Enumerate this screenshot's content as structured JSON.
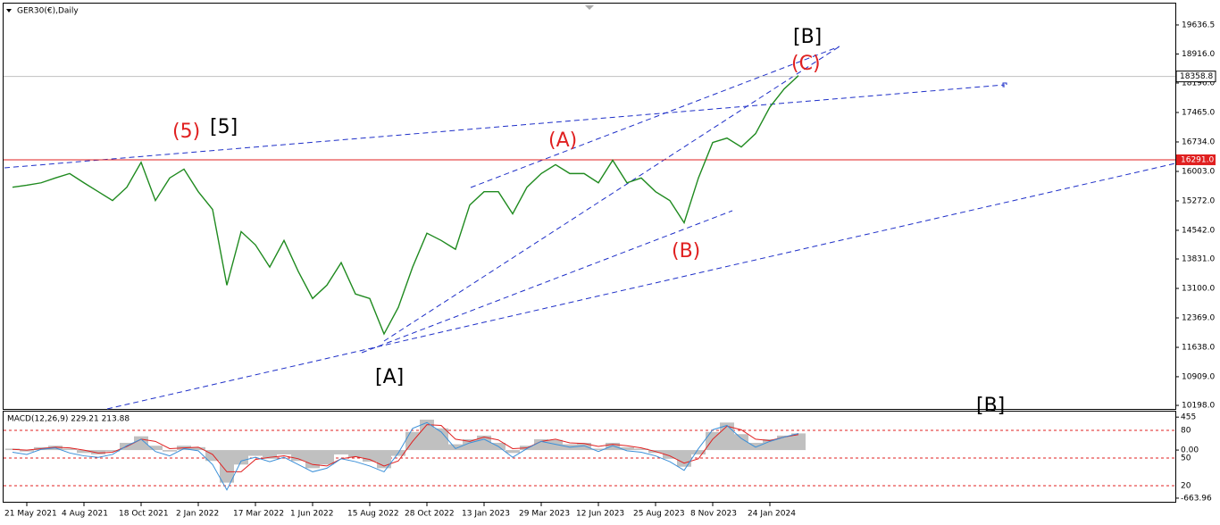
{
  "chart_data": [
    {
      "type": "line",
      "title": "GER30(€),Daily",
      "categories": [
        null,
        "21 May 2021",
        null,
        null,
        null,
        "4 Aug 2021",
        null,
        null,
        null,
        "18 Oct 2021",
        null,
        null,
        null,
        "2 Jan 2022",
        null,
        null,
        null,
        "17 Mar 2022",
        null,
        null,
        null,
        "1 Jun 2022",
        null,
        null,
        null,
        "15 Aug 2022",
        null,
        null,
        null,
        "28 Oct 2022",
        null,
        null,
        null,
        "13 Jan 2023",
        null,
        null,
        null,
        "29 Mar 2023",
        null,
        null,
        null,
        "12 Jun 2023",
        null,
        null,
        null,
        "25 Aug 2023",
        null,
        null,
        null,
        "8 Nov 2023",
        null,
        null,
        null,
        "24 Jan 2024",
        null,
        null
      ],
      "series": [
        {
          "color": "#1f8a1f",
          "values": [
            15610,
            15660,
            15720,
            15840,
            15950,
            15720,
            15500,
            15280,
            15610,
            16230,
            15280,
            15840,
            16060,
            15500,
            15060,
            13180,
            14510,
            14180,
            13630,
            14290,
            13520,
            12850,
            13180,
            13740,
            12960,
            12850,
            11970,
            12630,
            13630,
            14470,
            14290,
            14070,
            15170,
            15500,
            15500,
            14950,
            15610,
            15950,
            16170,
            15950,
            15950,
            15720,
            16280,
            15720,
            15840,
            15500,
            15280,
            14730,
            15840,
            16720,
            16830,
            16610,
            16940,
            17600,
            18050,
            18380
          ]
        }
      ],
      "ylim": [
        10110,
        20145
      ],
      "yticks": [
        19636.5,
        {
          "value": 18916,
          "label": "18916.0"
        },
        {
          "value": 18196,
          "label": "18196.0"
        },
        {
          "value": 17465,
          "label": "17465.0"
        },
        {
          "value": 16734,
          "label": "16734.0"
        },
        {
          "value": 16003,
          "label": "16003.0"
        },
        {
          "value": 15272,
          "label": "15272.0"
        },
        {
          "value": 14542,
          "label": "14542.0"
        },
        {
          "value": 13831,
          "label": "13831.0"
        },
        {
          "value": 13100,
          "label": "13100.0"
        },
        {
          "value": 12369,
          "label": "12369.0"
        },
        {
          "value": 11638,
          "label": "11638.0"
        },
        {
          "value": 10909,
          "label": "10909.0"
        },
        {
          "value": 10198,
          "label": "10198.0"
        }
      ],
      "current_price": 18358.8,
      "level": {
        "value": 16291,
        "label": "16291.0",
        "color": "#e02020"
      },
      "annotations": [
        "(5)",
        "[5]",
        "(A)",
        "(B)",
        "(C)",
        "[B]",
        "[A]",
        "[B]"
      ]
    },
    {
      "type": "macd",
      "title": "MACD(12,26,9) 229.21 213.88",
      "series": [
        {
          "color": "#c0c0c0",
          "values": [
            20,
            -20,
            40,
            60,
            20,
            -40,
            -60,
            -20,
            100,
            190,
            60,
            -20,
            60,
            40,
            -150,
            -450,
            -200,
            -80,
            -120,
            -60,
            -150,
            -250,
            -200,
            -60,
            -100,
            -160,
            -250,
            -80,
            250,
            420,
            300,
            80,
            150,
            200,
            100,
            -40,
            60,
            150,
            140,
            80,
            100,
            20,
            100,
            40,
            20,
            -40,
            -120,
            -230,
            -60,
            250,
            380,
            220,
            100,
            150,
            200,
            230
          ]
        },
        {
          "color": "#e02020",
          "values": [
            10,
            0,
            20,
            40,
            30,
            0,
            -40,
            -30,
            50,
            150,
            120,
            20,
            30,
            40,
            -60,
            -300,
            -300,
            -130,
            -100,
            -80,
            -120,
            -200,
            -220,
            -120,
            -90,
            -130,
            -220,
            -150,
            120,
            350,
            340,
            150,
            120,
            180,
            140,
            20,
            30,
            120,
            150,
            100,
            90,
            50,
            80,
            60,
            30,
            -20,
            -80,
            -180,
            -120,
            150,
            330,
            280,
            150,
            130,
            180,
            214
          ]
        },
        {
          "color": "#3a8fd8",
          "values": [
            -30,
            -60,
            10,
            30,
            -40,
            -80,
            -100,
            -60,
            60,
            150,
            -20,
            -80,
            20,
            -10,
            -200,
            -550,
            -150,
            -100,
            -160,
            -100,
            -200,
            -300,
            -250,
            -120,
            -160,
            -220,
            -300,
            -40,
            300,
            380,
            250,
            20,
            100,
            150,
            50,
            -100,
            20,
            120,
            80,
            40,
            60,
            -20,
            60,
            -10,
            -30,
            -80,
            -160,
            -280,
            20,
            280,
            340,
            160,
            40,
            120,
            180,
            229
          ]
        }
      ],
      "ylim": [
        -714,
        531
      ],
      "yticks": [
        455,
        {
          "value": 0,
          "label": "0.00"
        },
        -663.96
      ],
      "level_labels": [
        "80",
        "50",
        "20"
      ]
    }
  ]
}
